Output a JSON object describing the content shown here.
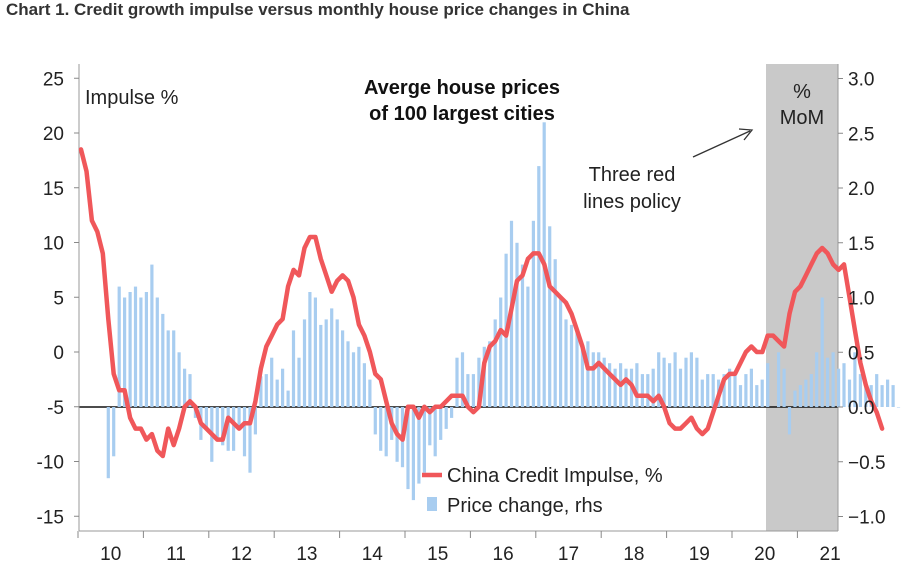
{
  "title": "Chart 1. Credit growth impulse versus monthly house price changes in China",
  "chart_data": {
    "type": "bar+line",
    "y_left_label": "Impulse %",
    "y_right_label_line1": "%",
    "y_right_label_line2": "MoM",
    "y_left_ticks": [
      "25",
      "20",
      "15",
      "10",
      "5",
      "0",
      "-5",
      "-10",
      "-15"
    ],
    "y_right_ticks": [
      "3.0",
      "2.5",
      "2.0",
      "1.5",
      "1.0",
      "0.5",
      "0.0",
      "-0.5",
      "-1.0"
    ],
    "y_left_range": [
      -15,
      25
    ],
    "y_right_range": [
      -1.0,
      3.0
    ],
    "x_ticks": [
      "10",
      "11",
      "12",
      "13",
      "14",
      "15",
      "16",
      "17",
      "18",
      "19",
      "20",
      "21"
    ],
    "annotation_bold_line1": "Averge house prices",
    "annotation_bold_line2": "of 100 largest cities",
    "annotation_policy_line1": "Three red",
    "annotation_policy_line2": "lines policy",
    "shaded_period": "2020-2021",
    "colors": {
      "line": "#f0575a",
      "bars": "#a8cdf0",
      "shade": "#c9c9c9"
    },
    "series": [
      {
        "name": "China Credit Impulse, %",
        "axis": "left",
        "values": [
          18.5,
          16.5,
          12.0,
          11.0,
          9.0,
          3.0,
          -2.0,
          -3.5,
          -3.5,
          -6.0,
          -7.0,
          -7.0,
          -8.0,
          -7.5,
          -9.0,
          -9.5,
          -7.0,
          -8.5,
          -7.0,
          -5.0,
          -4.5,
          -5.0,
          -6.5,
          -7.0,
          -7.5,
          -8.0,
          -8.0,
          -6.0,
          -6.5,
          -7.0,
          -6.5,
          -6.5,
          -4.5,
          -1.5,
          0.5,
          1.5,
          2.5,
          3.0,
          6.0,
          7.5,
          7.0,
          9.5,
          10.5,
          10.5,
          8.5,
          7.0,
          5.5,
          6.5,
          7.0,
          6.5,
          5.0,
          2.5,
          1.5,
          0.0,
          -2.0,
          -2.5,
          -4.5,
          -6.5,
          -7.5,
          -8.0,
          -5.0,
          -5.0,
          -6.0,
          -5.0,
          -5.5,
          -5.0,
          -5.0,
          -4.5,
          -4.0,
          -4.0,
          -4.0,
          -5.0,
          -5.5,
          -5.0,
          -1.0,
          0.5,
          1.0,
          2.0,
          1.5,
          4.0,
          6.5,
          7.0,
          8.5,
          9.0,
          9.0,
          8.0,
          6.0,
          5.5,
          5.0,
          4.5,
          3.5,
          2.0,
          0.5,
          -1.5,
          -1.5,
          -1.0,
          -1.5,
          -2.0,
          -2.5,
          -3.0,
          -2.5,
          -3.0,
          -4.0,
          -4.0,
          -4.0,
          -4.5,
          -4.0,
          -5.0,
          -6.5,
          -7.0,
          -7.0,
          -6.5,
          -6.0,
          -7.0,
          -7.5,
          -7.0,
          -5.5,
          -4.0,
          -2.5,
          -2.0,
          -2.0,
          -1.0,
          0.0,
          0.5,
          0.0,
          0.0,
          1.5,
          1.5,
          1.0,
          0.5,
          3.5,
          5.5,
          6.0,
          7.0,
          8.0,
          9.0,
          9.5,
          9.0,
          8.0,
          7.5,
          8.0,
          5.0,
          2.0,
          -1.0,
          -3.0,
          -4.5,
          -5.5,
          -7.0
        ]
      },
      {
        "name": "Price change, rhs",
        "axis": "right",
        "values": [
          null,
          null,
          null,
          null,
          null,
          -0.65,
          -0.45,
          1.1,
          1.0,
          1.05,
          1.1,
          1.0,
          1.05,
          1.3,
          1.0,
          0.85,
          0.7,
          0.7,
          0.5,
          0.35,
          0.3,
          -0.1,
          -0.3,
          -0.2,
          -0.5,
          -0.3,
          -0.35,
          -0.4,
          -0.4,
          -0.2,
          -0.45,
          -0.6,
          -0.25,
          0.28,
          0.3,
          0.45,
          0.25,
          0.35,
          0.15,
          0.7,
          0.45,
          0.8,
          1.05,
          1.0,
          0.75,
          0.8,
          0.9,
          0.8,
          0.7,
          0.6,
          0.5,
          0.55,
          0.4,
          0.25,
          -0.25,
          -0.4,
          -0.45,
          -0.3,
          -0.5,
          -0.55,
          -0.75,
          -0.85,
          -0.7,
          -0.6,
          -0.35,
          -0.45,
          -0.3,
          -0.2,
          -0.1,
          0.45,
          0.5,
          0.3,
          0.3,
          0.45,
          0.55,
          0.6,
          0.8,
          1.0,
          1.4,
          1.7,
          1.5,
          1.3,
          1.1,
          1.7,
          2.2,
          2.6,
          1.65,
          1.35,
          1.0,
          0.8,
          0.75,
          0.7,
          0.55,
          0.6,
          0.5,
          0.5,
          0.45,
          0.4,
          0.35,
          0.4,
          0.35,
          0.35,
          0.4,
          0.3,
          0.3,
          0.35,
          0.5,
          0.45,
          0.4,
          0.5,
          0.35,
          0.45,
          0.5,
          0.45,
          0.25,
          0.3,
          0.3,
          0.25,
          0.3,
          0.35,
          0.3,
          0.2,
          0.3,
          0.35,
          0.2,
          0.25,
          0.4,
          null,
          0.5,
          0.35,
          -0.25,
          0.15,
          0.2,
          0.25,
          0.3,
          0.5,
          1.0,
          0.45,
          0.5,
          0.35,
          0.4,
          0.25,
          0.5,
          0.3,
          0.2,
          0.2,
          0.3,
          0.2,
          0.25,
          0.2,
          0.0
        ]
      }
    ]
  }
}
